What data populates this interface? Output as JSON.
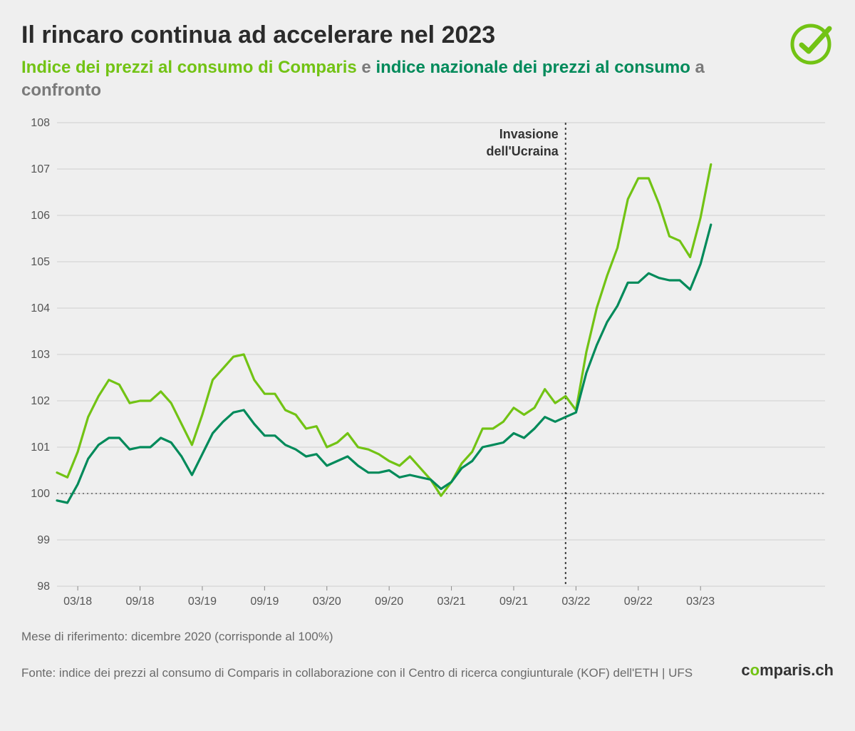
{
  "header": {
    "title": "Il rincaro continua ad accelerare nel 2023",
    "subtitle_series1": "Indice dei prezzi al consumo di Comparis",
    "subtitle_join": " e ",
    "subtitle_series2": "indice nazionale dei prezzi al consumo",
    "subtitle_tail": " a confronto"
  },
  "logo": {
    "stroke": "#72c314"
  },
  "chart": {
    "type": "line",
    "ylim": [
      98,
      108
    ],
    "ytick_step": 1,
    "x_range": [
      0,
      74
    ],
    "x_ticks": [
      {
        "i": 2,
        "label": "03/18"
      },
      {
        "i": 8,
        "label": "09/18"
      },
      {
        "i": 14,
        "label": "03/19"
      },
      {
        "i": 20,
        "label": "09/19"
      },
      {
        "i": 26,
        "label": "03/20"
      },
      {
        "i": 32,
        "label": "09/20"
      },
      {
        "i": 38,
        "label": "03/21"
      },
      {
        "i": 44,
        "label": "09/21"
      },
      {
        "i": 50,
        "label": "03/22"
      },
      {
        "i": 56,
        "label": "09/22"
      },
      {
        "i": 62,
        "label": "03/23"
      }
    ],
    "baseline_y": 100,
    "annotation": {
      "x": 49,
      "text1": "Invasione",
      "text2": "dell'Ucraina"
    },
    "plot_bg": "#efefef",
    "grid_color": "#cfcfcf",
    "axis_text_color": "#555555",
    "tick_fontsize": 16,
    "annot_fontsize": 18,
    "line_width": 3.2,
    "series": [
      {
        "name": "comparis",
        "color": "#72c314",
        "values": [
          100.45,
          100.35,
          100.9,
          101.65,
          102.1,
          102.45,
          102.35,
          101.95,
          102.0,
          102.0,
          102.2,
          101.95,
          101.5,
          101.05,
          101.7,
          102.45,
          102.7,
          102.95,
          103.0,
          102.45,
          102.15,
          102.15,
          101.8,
          101.7,
          101.4,
          101.45,
          101.0,
          101.1,
          101.3,
          101.0,
          100.95,
          100.85,
          100.7,
          100.6,
          100.8,
          100.55,
          100.3,
          99.95,
          100.25,
          100.65,
          100.9,
          101.4,
          101.4,
          101.55,
          101.85,
          101.7,
          101.85,
          102.25,
          101.95,
          102.1,
          101.8,
          103.05,
          104.0,
          104.7,
          105.3,
          106.35,
          106.8,
          106.8,
          106.25,
          105.55,
          105.45,
          105.1,
          105.95,
          107.1
        ]
      },
      {
        "name": "national",
        "color": "#008a5a",
        "values": [
          99.85,
          99.8,
          100.2,
          100.75,
          101.05,
          101.2,
          101.2,
          100.95,
          101.0,
          101.0,
          101.2,
          101.1,
          100.8,
          100.4,
          100.85,
          101.3,
          101.55,
          101.75,
          101.8,
          101.5,
          101.25,
          101.25,
          101.05,
          100.95,
          100.8,
          100.85,
          100.6,
          100.7,
          100.8,
          100.6,
          100.45,
          100.45,
          100.5,
          100.35,
          100.4,
          100.35,
          100.3,
          100.1,
          100.25,
          100.55,
          100.7,
          101.0,
          101.05,
          101.1,
          101.3,
          101.2,
          101.4,
          101.65,
          101.55,
          101.65,
          101.75,
          102.6,
          103.2,
          103.7,
          104.05,
          104.55,
          104.55,
          104.75,
          104.65,
          104.6,
          104.6,
          104.4,
          104.95,
          105.8
        ]
      }
    ]
  },
  "footer": {
    "note": "Mese di riferimento: dicembre 2020 (corrisponde al 100%)",
    "source": "Fonte: indice dei prezzi al consumo di Comparis in collaborazione con il Centro di ricerca congiunturale (KOF) dell'ETH | UFS",
    "brand_pre": "c",
    "brand_o": "o",
    "brand_post": "mparis.ch"
  }
}
